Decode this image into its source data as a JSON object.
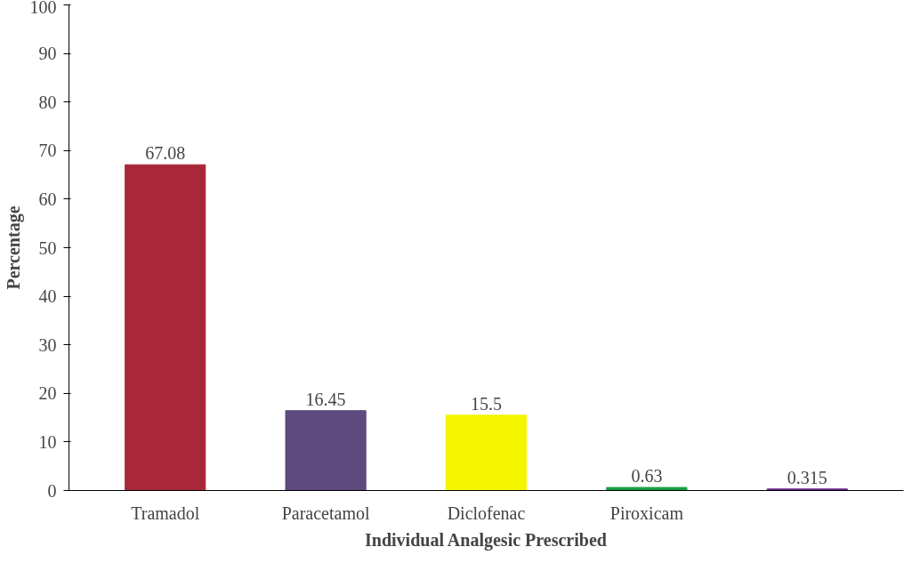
{
  "chart_data": {
    "type": "bar",
    "xlabel": "Individual Analgesic Prescribed",
    "ylabel": "Percentage",
    "categories": [
      "Tramadol",
      "Paracetamol",
      "Diclofenac",
      "Piroxicam",
      null
    ],
    "values": [
      67.08,
      16.45,
      15.5,
      0.63,
      0.315
    ],
    "colors": [
      "#a8283a",
      "#5e4a7e",
      "#f5f500",
      "#14a040",
      "#6a2590"
    ],
    "ylim": [
      0,
      100
    ],
    "yticks": [
      0,
      10,
      20,
      30,
      40,
      50,
      60,
      70,
      80,
      90,
      100
    ],
    "grid": false,
    "data_labels": true
  }
}
